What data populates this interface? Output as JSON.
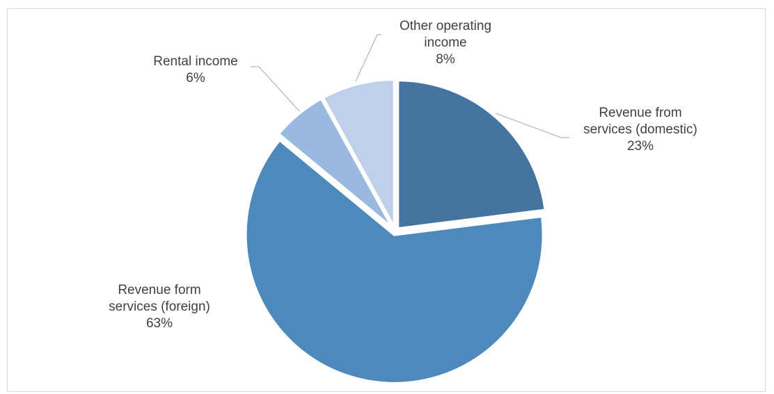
{
  "chart_data": {
    "type": "pie",
    "title": "",
    "series": [
      {
        "values": [
          23,
          63,
          6,
          8
        ],
        "labels": [
          "Revenue from services (domestic)",
          "Revenue form services (foreign)",
          "Rental income",
          "Other operating income"
        ],
        "colors": [
          "#44749f",
          "#4e89bb",
          "#9ab9e0",
          "#bed0ea"
        ]
      }
    ],
    "slices": [
      {
        "label_lines": [
          "Revenue from",
          "services (domestic)"
        ],
        "pct": "23%"
      },
      {
        "label_lines": [
          "Revenue form",
          "services (foreign)"
        ],
        "pct": "63%"
      },
      {
        "label_lines": [
          "Rental income"
        ],
        "pct": "6%"
      },
      {
        "label_lines": [
          "Other operating",
          "income"
        ],
        "pct": "8%"
      }
    ],
    "exploded": true,
    "legend": "none"
  }
}
